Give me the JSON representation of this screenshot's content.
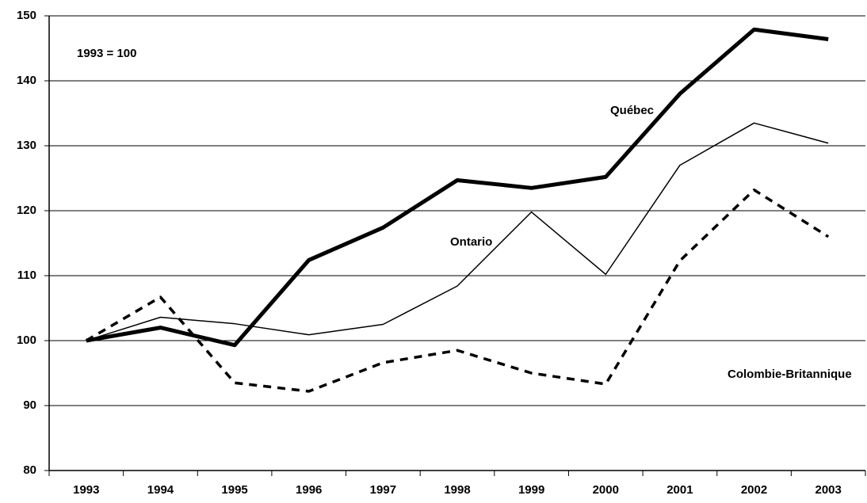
{
  "chart_data": {
    "type": "line",
    "annotation": "1993 = 100",
    "categories": [
      "1993",
      "1994",
      "1995",
      "1996",
      "1997",
      "1998",
      "1999",
      "2000",
      "2001",
      "2002",
      "2003"
    ],
    "series": [
      {
        "name": "Québec",
        "color": "#000000",
        "style": "thick",
        "values": [
          100,
          102,
          99.3,
          112.4,
          117.4,
          124.7,
          123.5,
          125.2,
          138,
          147.9,
          146.4
        ]
      },
      {
        "name": "Ontario",
        "color": "#000000",
        "style": "thin",
        "values": [
          100,
          103.6,
          102.6,
          100.9,
          102.5,
          108.4,
          119.8,
          110.2,
          127,
          133.5,
          130.4
        ]
      },
      {
        "name": "Colombie-Britannique",
        "color": "#000000",
        "style": "dashed",
        "values": [
          100,
          106.7,
          93.5,
          92.2,
          96.6,
          98.5,
          95,
          93.3,
          112.3,
          123.2,
          116
        ]
      }
    ],
    "ylim": [
      80,
      150
    ],
    "yticks": [
      80,
      90,
      100,
      110,
      120,
      130,
      140,
      150
    ],
    "grid": true
  }
}
